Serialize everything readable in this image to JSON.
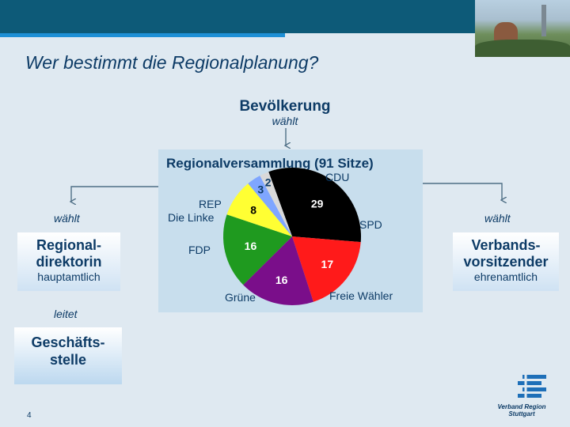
{
  "slide": {
    "title": "Wer bestimmt die Regionalplanung?",
    "page_number": "4"
  },
  "nodes": {
    "population": {
      "title": "Bevölkerung",
      "action": "wählt"
    },
    "assembly": {
      "title": "Regionalversammlung (91 Sitze)"
    },
    "left_action": "wählt",
    "right_action": "wählt",
    "director": {
      "title_line1": "Regional-",
      "title_line2": "direktorin",
      "sub": "hauptamtlich"
    },
    "leads": "leitet",
    "office": {
      "title_line1": "Geschäfts-",
      "title_line2": "stelle"
    },
    "chair": {
      "title_line1": "Verbands-",
      "title_line2": "vorsitzender",
      "sub": "ehrenamtlich"
    }
  },
  "chart_data": {
    "type": "pie",
    "title": "Regionalversammlung (91 Sitze)",
    "slices": [
      {
        "label": "CDU",
        "value": 29,
        "color": "#000000",
        "value_color": "#ffffff"
      },
      {
        "label": "SPD",
        "value": 17,
        "color": "#ff1a1a",
        "value_color": "#ffffff"
      },
      {
        "label": "Freie Wähler",
        "value": 16,
        "color": "#7a0e8a",
        "value_color": "#ffffff"
      },
      {
        "label": "Grüne",
        "value": 16,
        "color": "#1f9a1f",
        "value_color": "#ffffff"
      },
      {
        "label": "FDP",
        "value": 8,
        "color": "#ffff33",
        "value_color": "#000000"
      },
      {
        "label": "Die Linke",
        "value": 3,
        "color": "#7fa6ff",
        "value_color": "#0d3b66"
      },
      {
        "label": "REP",
        "value": 2,
        "color": "#d9d9d9",
        "value_color": "#0d3b66"
      }
    ]
  },
  "logo": {
    "line1": "Verband Region",
    "line2": "Stuttgart"
  },
  "colors": {
    "header": "#0d5a78",
    "accent": "#1e90d6",
    "text": "#0d3b66"
  }
}
